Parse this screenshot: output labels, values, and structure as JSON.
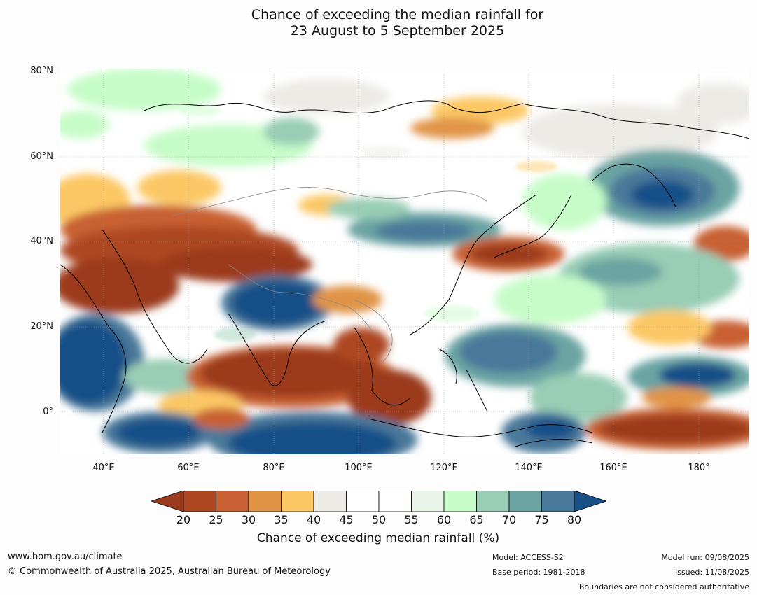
{
  "title": {
    "line1": "Chance of exceeding the median rainfall for",
    "line2": "23 August to 5 September 2025"
  },
  "map": {
    "lat_labels": [
      "80°N",
      "60°N",
      "40°N",
      "20°N",
      "0°"
    ],
    "lon_labels": [
      "40°E",
      "60°E",
      "80°E",
      "100°E",
      "120°E",
      "140°E",
      "160°E",
      "180°"
    ],
    "extent": {
      "lon": [
        30,
        192
      ],
      "lat": [
        -10,
        80
      ]
    },
    "grid": true,
    "regions": [
      {
        "name": "siberia-north",
        "prob": 65
      },
      {
        "name": "middle-east",
        "prob": 20
      },
      {
        "name": "central-asia",
        "prob": 35
      },
      {
        "name": "tibetan-plateau",
        "prob": 80
      },
      {
        "name": "china-north",
        "prob": 75
      },
      {
        "name": "arabian-sea",
        "prob": 80
      },
      {
        "name": "india-bay-of-bengal",
        "prob": 20
      },
      {
        "name": "indian-ocean-south",
        "prob": 80
      },
      {
        "name": "maritime-continent",
        "prob": 80
      },
      {
        "name": "philippine-sea",
        "prob": 75
      },
      {
        "name": "japan",
        "prob": 20
      },
      {
        "name": "far-east-russia",
        "prob": 80
      },
      {
        "name": "west-pacific-equator",
        "prob": 20
      },
      {
        "name": "north-pacific",
        "prob": 70
      }
    ]
  },
  "colorbar": {
    "ticks": [
      "20",
      "25",
      "30",
      "35",
      "40",
      "45",
      "50",
      "55",
      "60",
      "65",
      "70",
      "75",
      "80"
    ],
    "colors": [
      "#9b3a1d",
      "#ad4721",
      "#c86032",
      "#e19446",
      "#fcc865",
      "#ecebe6",
      "#ffffff",
      "#ffffff",
      "#e9f5e9",
      "#c6fcc8",
      "#99cdb5",
      "#6ba4a3",
      "#48789a",
      "#194f87"
    ],
    "label": "Chance of exceeding median rainfall (%)"
  },
  "footer": {
    "url": "www.bom.gov.au/climate",
    "copyright": "© Commonwealth of Australia 2025, Australian Bureau of Meteorology",
    "model": "Model: ACCESS-S2",
    "base_period": "Base period: 1981-2018",
    "model_run": "Model run: 09/08/2025",
    "issued": "Issued: 11/08/2025",
    "disclaimer": "Boundaries are not considered authoritative"
  }
}
